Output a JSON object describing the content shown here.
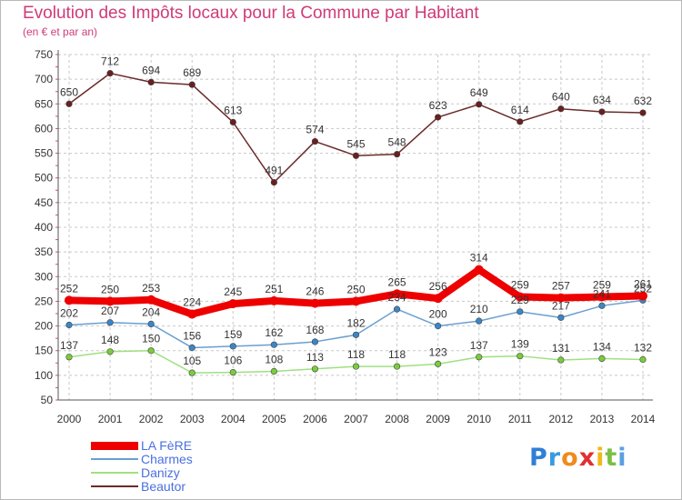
{
  "title": "Evolution des Impôts locaux pour la Commune par Habitant",
  "subtitle": "(en € et par an)",
  "logo": {
    "letters": [
      "P",
      "r",
      "o",
      "x",
      "i",
      "t",
      "i"
    ],
    "colors": [
      "#2f7fd6",
      "#3a9ae0",
      "#f08a1c",
      "#e03030",
      "#f0b81c",
      "#7ac043",
      "#5aa0e0"
    ]
  },
  "chart_data": {
    "type": "line",
    "title": "Evolution des Impôts locaux pour la Commune par Habitant",
    "subtitle": "(en € et par an)",
    "x": [
      2000,
      2001,
      2002,
      2003,
      2004,
      2005,
      2006,
      2007,
      2008,
      2009,
      2010,
      2011,
      2012,
      2013,
      2014
    ],
    "ylim": [
      50,
      750
    ],
    "yticks": [
      50,
      100,
      150,
      200,
      250,
      300,
      350,
      400,
      450,
      500,
      550,
      600,
      650,
      700,
      750
    ],
    "grid": true,
    "legend_position": "bottom-left",
    "series": [
      {
        "name": "LA FèRE",
        "color": "#ee0000",
        "marker": "#ee0000",
        "values": [
          252,
          250,
          253,
          224,
          245,
          251,
          246,
          250,
          265,
          256,
          314,
          259,
          257,
          259,
          261
        ]
      },
      {
        "name": "Charmes",
        "color": "#6a9fd0",
        "marker": "#3a86c8",
        "values": [
          202,
          207,
          204,
          156,
          159,
          162,
          168,
          182,
          234,
          200,
          210,
          229,
          217,
          241,
          252
        ]
      },
      {
        "name": "Danizy",
        "color": "#9fe080",
        "marker": "#7acc3c",
        "values": [
          137,
          148,
          150,
          105,
          106,
          108,
          113,
          118,
          118,
          123,
          137,
          139,
          131,
          134,
          132
        ]
      },
      {
        "name": "Beautor",
        "color": "#6a2a2a",
        "marker": "#6a1f1f",
        "values": [
          650,
          712,
          694,
          689,
          613,
          491,
          574,
          545,
          548,
          623,
          649,
          614,
          640,
          634,
          632
        ]
      }
    ]
  }
}
